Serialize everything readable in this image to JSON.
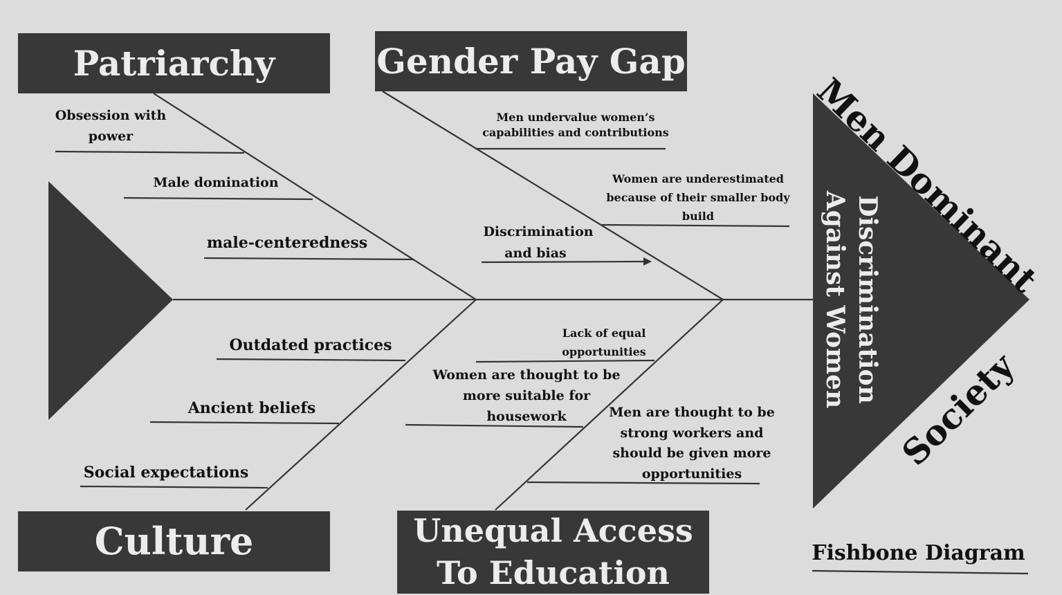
{
  "categories": {
    "patriarchy": "Patriarchy",
    "gender_pay_gap": "Gender Pay Gap",
    "culture": "Culture",
    "unequal_access_line1": "Unequal Access",
    "unequal_access_line2": "To Education"
  },
  "causes": {
    "obsession_line1": "Obsession with",
    "obsession_line2": "power",
    "male_domination": "Male domination",
    "male_centeredness": "male-centeredness",
    "undervalue_line1": "Men undervalue women’s",
    "undervalue_line2": "capabilities and contributions",
    "underestimated_line1": "Women are underestimated",
    "underestimated_line2": "because of their smaller body",
    "underestimated_line3": "build",
    "discrimination_line1": "Discrimination",
    "discrimination_line2": "and bias",
    "outdated_practices": "Outdated practices",
    "ancient_beliefs": "Ancient beliefs",
    "social_expectations": "Social expectations",
    "lack_equal_line1": "Lack of equal",
    "lack_equal_line2": "opportunities",
    "housework_line1": "Women are thought to be",
    "housework_line2": "more suitable for",
    "housework_line3": "housework",
    "strong_workers_line1": "Men are thought to be",
    "strong_workers_line2": "strong workers and",
    "strong_workers_line3": "should be given more",
    "strong_workers_line4": "opportunities"
  },
  "head": {
    "problem_line1": "Discrimination",
    "problem_line2": "Against Women",
    "diagonal_top": "Men Dominant",
    "diagonal_bottom": "Society"
  },
  "caption": "Fishbone Diagram",
  "colors": {
    "background": "#dcdcdc",
    "box_fill": "#383838",
    "box_text": "#ececec",
    "line": "#333333"
  }
}
